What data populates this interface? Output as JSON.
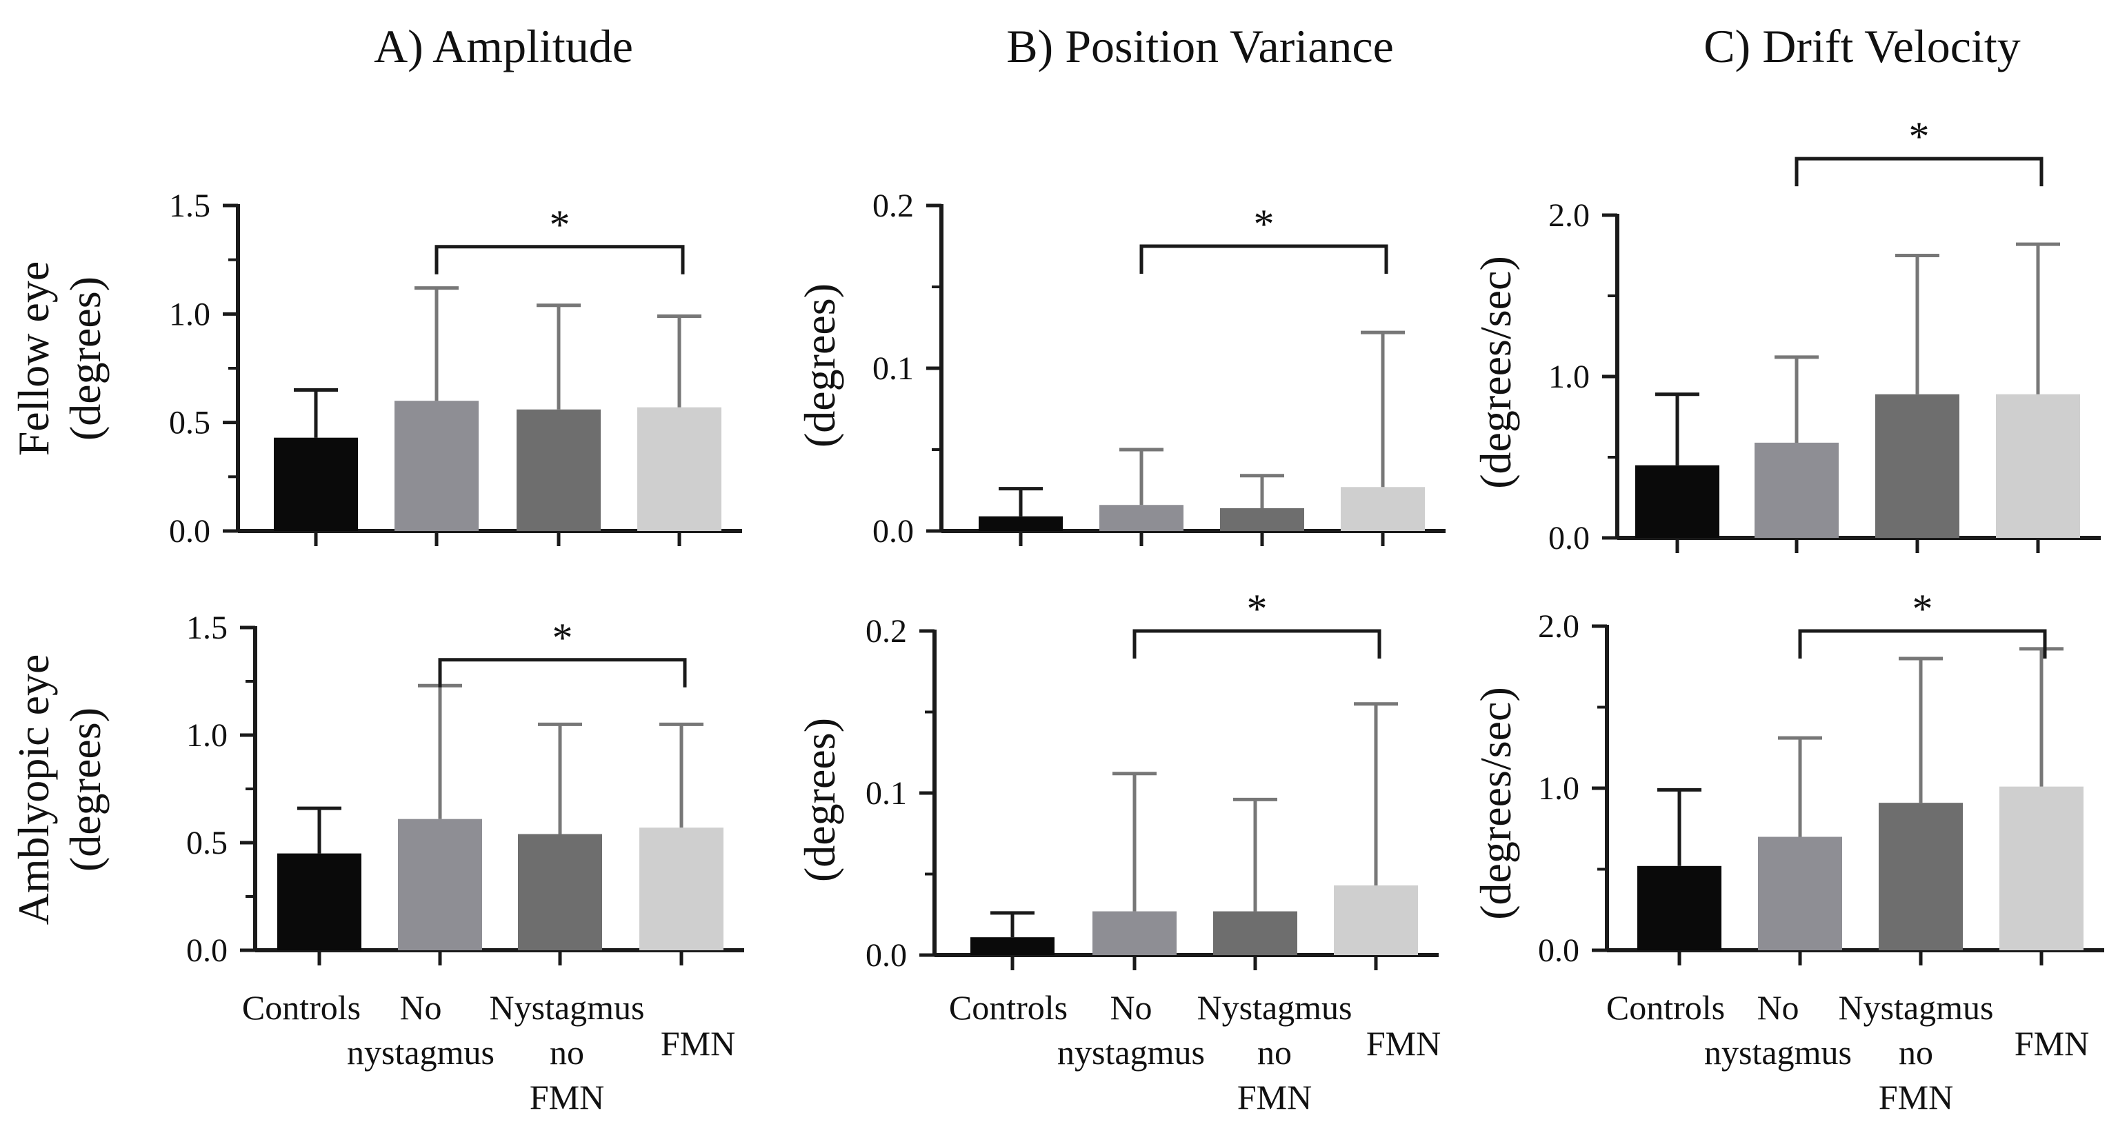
{
  "row_labels": [
    {
      "line1": "Fellow eye",
      "line2": "(degrees)"
    },
    {
      "line1": "Amblyopic eye",
      "line2": "(degrees)"
    }
  ],
  "category_lines": [
    [
      "Controls"
    ],
    [
      "No",
      "nystagmus"
    ],
    [
      "Nystagmus",
      "no",
      "FMN"
    ],
    [
      "FMN"
    ]
  ],
  "colors": [
    "#0a0a0a",
    "#8e8e94",
    "#6e6e6e",
    "#cfcfcf"
  ],
  "chart_data": [
    {
      "type": "bar",
      "panel": "A",
      "row": "Fellow eye",
      "title": "A) Amplitude",
      "ylabel": "",
      "ylim": [
        0,
        1.5
      ],
      "yticks": [
        "0.0",
        "0.5",
        "1.0",
        "1.5"
      ],
      "categories": [
        "Controls",
        "No nystagmus",
        "Nystagmus no FMN",
        "FMN"
      ],
      "values": [
        0.43,
        0.6,
        0.56,
        0.57
      ],
      "error_upper": [
        0.65,
        1.12,
        1.04,
        0.99
      ],
      "significance": {
        "label": "*",
        "from": 1,
        "to": 3,
        "level": 1.31
      }
    },
    {
      "type": "bar",
      "panel": "B",
      "row": "Fellow eye",
      "title": "B) Position Variance",
      "ylabel": "(degrees)",
      "ylim": [
        0,
        0.2
      ],
      "yticks": [
        "0.0",
        "0.1",
        "0.2"
      ],
      "categories": [
        "Controls",
        "No nystagmus",
        "Nystagmus no FMN",
        "FMN"
      ],
      "values": [
        0.009,
        0.016,
        0.014,
        0.027
      ],
      "error_upper": [
        0.026,
        0.05,
        0.034,
        0.122
      ],
      "significance": {
        "label": "*",
        "from": 1,
        "to": 3,
        "level": 0.175
      }
    },
    {
      "type": "bar",
      "panel": "C",
      "row": "Fellow eye",
      "title": "C) Drift Velocity",
      "ylabel": "(degrees/sec)",
      "ylim": [
        0,
        2.0
      ],
      "yticks": [
        "0.0",
        "1.0",
        "2.0"
      ],
      "categories": [
        "Controls",
        "No nystagmus",
        "Nystagmus no FMN",
        "FMN"
      ],
      "values": [
        0.45,
        0.59,
        0.89,
        0.89
      ],
      "error_upper": [
        0.89,
        1.12,
        1.75,
        1.82
      ],
      "significance": {
        "label": "*",
        "from": 1,
        "to": 3,
        "level": 2.35
      }
    },
    {
      "type": "bar",
      "panel": "A",
      "row": "Amblyopic eye",
      "title": "",
      "ylabel": "",
      "ylim": [
        0,
        1.5
      ],
      "yticks": [
        "0.0",
        "0.5",
        "1.0",
        "1.5"
      ],
      "categories": [
        "Controls",
        "No nystagmus",
        "Nystagmus no FMN",
        "FMN"
      ],
      "values": [
        0.45,
        0.61,
        0.54,
        0.57
      ],
      "error_upper": [
        0.66,
        1.23,
        1.05,
        1.05
      ],
      "significance": {
        "label": "*",
        "from": 1,
        "to": 3,
        "level": 1.35
      }
    },
    {
      "type": "bar",
      "panel": "B",
      "row": "Amblyopic eye",
      "title": "",
      "ylabel": "(degrees)",
      "ylim": [
        0,
        0.2
      ],
      "yticks": [
        "0.0",
        "0.1",
        "0.2"
      ],
      "categories": [
        "Controls",
        "No nystagmus",
        "Nystagmus no FMN",
        "FMN"
      ],
      "values": [
        0.011,
        0.027,
        0.027,
        0.043
      ],
      "error_upper": [
        0.026,
        0.112,
        0.096,
        0.155
      ],
      "significance": {
        "label": "*",
        "from": 1,
        "to": 3,
        "level": 0.2
      }
    },
    {
      "type": "bar",
      "panel": "C",
      "row": "Amblyopic eye",
      "title": "",
      "ylabel": "(degrees/sec)",
      "ylim": [
        0,
        2.0
      ],
      "yticks": [
        "0.0",
        "1.0",
        "2.0"
      ],
      "categories": [
        "Controls",
        "No nystagmus",
        "Nystagmus no FMN",
        "FMN"
      ],
      "values": [
        0.52,
        0.7,
        0.91,
        1.01
      ],
      "error_upper": [
        0.99,
        1.31,
        1.8,
        1.86
      ],
      "significance": {
        "label": "*",
        "from": 1,
        "to": 3,
        "level": 1.97
      }
    }
  ]
}
